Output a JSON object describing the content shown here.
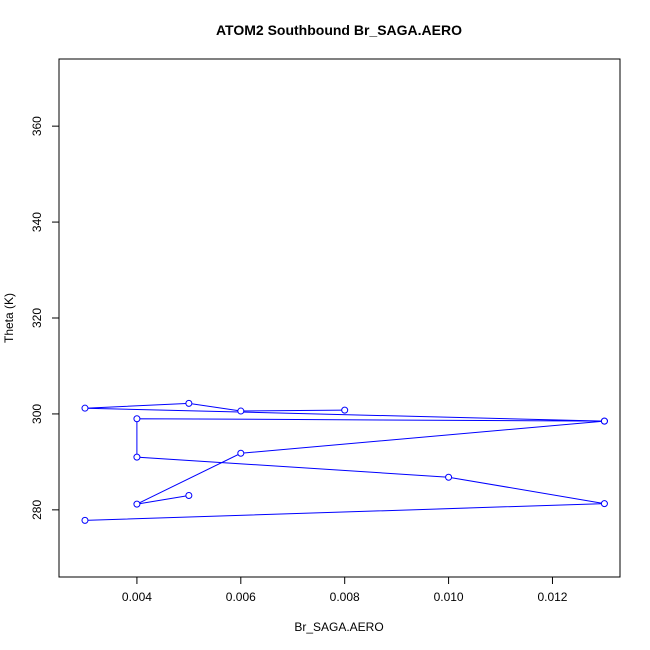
{
  "chart_data": {
    "type": "line",
    "title": "ATOM2 Southbound Br_SAGA.AERO",
    "xlabel": "Br_SAGA.AERO",
    "ylabel": "Theta (K)",
    "xlim": [
      0.0025,
      0.0133
    ],
    "ylim": [
      266,
      374
    ],
    "x_ticks": [
      0.004,
      0.006,
      0.008,
      0.01,
      0.012
    ],
    "x_tick_labels": [
      "0.004",
      "0.006",
      "0.008",
      "0.010",
      "0.012"
    ],
    "y_ticks": [
      280,
      300,
      320,
      340,
      360
    ],
    "y_tick_labels": [
      "280",
      "300",
      "320",
      "340",
      "360"
    ],
    "grid": false,
    "line_color": "#0000ff",
    "marker": "open-circle",
    "series": [
      {
        "x": [
          0.008,
          0.006,
          0.005,
          0.003,
          0.013,
          0.004,
          0.004,
          0.01,
          0.013,
          0.003
        ],
        "y": [
          300.8,
          300.6,
          302.2,
          301.2,
          298.5,
          299.0,
          291.0,
          286.8,
          281.3,
          277.8
        ]
      },
      {
        "x": [
          0.013,
          0.006,
          0.004,
          0.005
        ],
        "y": [
          298.5,
          291.8,
          281.2,
          283.0
        ]
      }
    ]
  }
}
